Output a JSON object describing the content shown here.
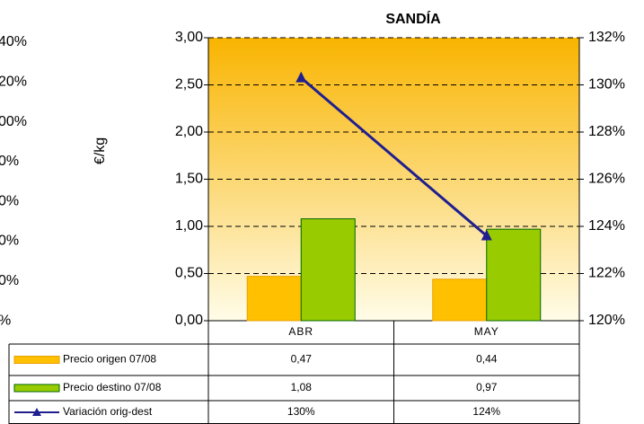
{
  "left_fragment": {
    "labels": [
      "40%",
      "20%",
      "00%",
      "0%",
      "0%",
      "0%",
      "0%",
      "%"
    ]
  },
  "chart_data": {
    "type": "bar",
    "title": "SANDÍA",
    "y_label": "€/kg",
    "categories": [
      "ABR",
      "MAY"
    ],
    "series": [
      {
        "name": "Precio origen 07/08",
        "color": "#ffc000",
        "values": [
          0.47,
          0.44
        ],
        "value_labels": [
          "0,47",
          "0,44"
        ]
      },
      {
        "name": "Precio destino 07/08",
        "color": "#99cc00",
        "values": [
          1.08,
          0.97
        ],
        "value_labels": [
          "1,08",
          "0,97"
        ]
      },
      {
        "name": "Variación orig-dest",
        "type": "line",
        "axis": "y2",
        "color": "#1f1f8f",
        "values": [
          130.3,
          123.6
        ],
        "value_labels": [
          "130%",
          "124%"
        ]
      }
    ],
    "ylim": [
      0,
      3
    ],
    "yticks": [
      {
        "value": 0,
        "label": "0,00"
      },
      {
        "value": 0.5,
        "label": "0,50"
      },
      {
        "value": 1,
        "label": "1,00"
      },
      {
        "value": 1.5,
        "label": "1,50"
      },
      {
        "value": 2,
        "label": "2,00"
      },
      {
        "value": 2.5,
        "label": "2,50"
      },
      {
        "value": 3,
        "label": "3,00"
      }
    ],
    "y2lim": [
      120,
      132
    ],
    "y2ticks": [
      {
        "value": 120,
        "label": "120%"
      },
      {
        "value": 122,
        "label": "122%"
      },
      {
        "value": 124,
        "label": "124%"
      },
      {
        "value": 126,
        "label": "126%"
      },
      {
        "value": 128,
        "label": "128%"
      },
      {
        "value": 130,
        "label": "130%"
      },
      {
        "value": 132,
        "label": "132%"
      }
    ],
    "grid": true,
    "data_table": true
  }
}
